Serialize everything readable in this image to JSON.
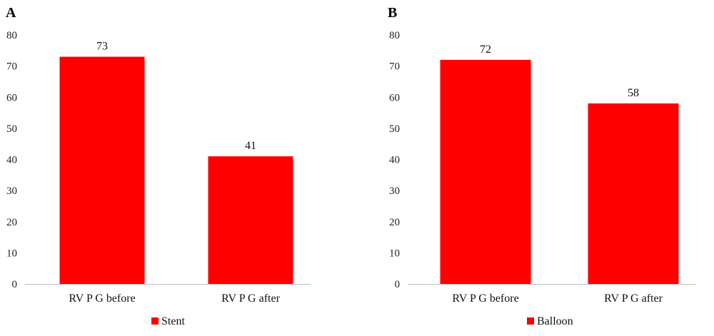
{
  "chart_data": [
    {
      "panel": "A",
      "type": "bar",
      "categories": [
        "RV P G before",
        "RV P G after"
      ],
      "series": [
        {
          "name": "Stent",
          "values": [
            73,
            41
          ],
          "color": "#ff0000"
        }
      ],
      "data_labels": [
        "73",
        "41"
      ],
      "yticks": [
        "0",
        "10",
        "20",
        "30",
        "40",
        "50",
        "60",
        "70",
        "80"
      ],
      "ylim": [
        0,
        80
      ],
      "grid": false,
      "legend": "bottom-left"
    },
    {
      "panel": "B",
      "type": "bar",
      "categories": [
        "RV P G before",
        "RV P G after"
      ],
      "series": [
        {
          "name": "Balloon",
          "values": [
            72,
            58
          ],
          "color": "#ff0000"
        }
      ],
      "data_labels": [
        "72",
        "58"
      ],
      "yticks": [
        "0",
        "10",
        "20",
        "30",
        "40",
        "50",
        "60",
        "70",
        "80"
      ],
      "ylim": [
        0,
        80
      ],
      "grid": false,
      "legend": "bottom-left"
    }
  ]
}
